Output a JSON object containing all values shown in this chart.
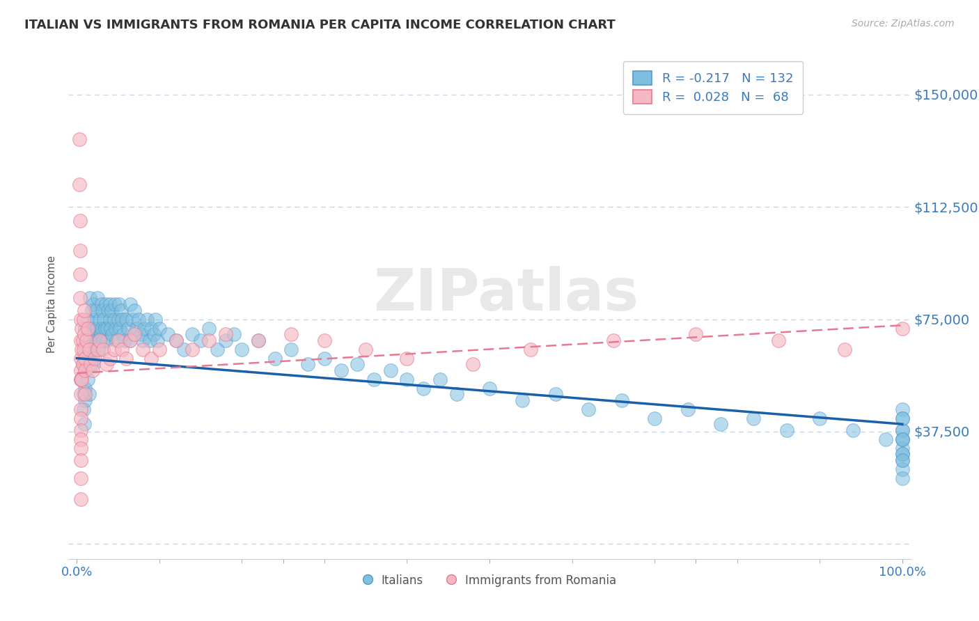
{
  "title": "ITALIAN VS IMMIGRANTS FROM ROMANIA PER CAPITA INCOME CORRELATION CHART",
  "source": "Source: ZipAtlas.com",
  "ylabel": "Per Capita Income",
  "xlim": [
    -0.01,
    1.01
  ],
  "ylim": [
    -5000,
    165000
  ],
  "yticks": [
    0,
    37500,
    75000,
    112500,
    150000
  ],
  "ytick_labels": [
    "",
    "$37,500",
    "$75,000",
    "$112,500",
    "$150,000"
  ],
  "xtick_positions": [
    0.0,
    0.25,
    0.5,
    0.75,
    1.0
  ],
  "xtick_labels": [
    "0.0%",
    "",
    "",
    "",
    "100.0%"
  ],
  "background_color": "#ffffff",
  "grid_color": "#c8d8e8",
  "blue_scatter_color": "#7fbfdf",
  "blue_edge_color": "#5599cc",
  "pink_scatter_color": "#f5b8c4",
  "pink_edge_color": "#e87890",
  "blue_line_color": "#1a5faa",
  "pink_line_color": "#e87890",
  "text_color": "#3a7abf",
  "label_italians": "Italians",
  "label_romania": "Immigrants from Romania",
  "watermark": "ZIPatlas",
  "blue_trend_x0": 0.0,
  "blue_trend_y0": 62000,
  "blue_trend_x1": 1.0,
  "blue_trend_y1": 40000,
  "pink_trend_x0": 0.0,
  "pink_trend_y0": 57000,
  "pink_trend_x1": 1.0,
  "pink_trend_y1": 73000,
  "legend_R1": "R = -0.217",
  "legend_N1": "N = 132",
  "legend_R2": "R =  0.028",
  "legend_N2": "N =  68",
  "italians_x": [
    0.005,
    0.007,
    0.008,
    0.008,
    0.009,
    0.01,
    0.01,
    0.01,
    0.01,
    0.01,
    0.012,
    0.012,
    0.013,
    0.013,
    0.015,
    0.015,
    0.015,
    0.016,
    0.016,
    0.017,
    0.018,
    0.018,
    0.019,
    0.019,
    0.02,
    0.02,
    0.02,
    0.022,
    0.022,
    0.023,
    0.024,
    0.025,
    0.025,
    0.026,
    0.027,
    0.028,
    0.029,
    0.03,
    0.03,
    0.031,
    0.032,
    0.033,
    0.034,
    0.035,
    0.036,
    0.037,
    0.038,
    0.04,
    0.04,
    0.041,
    0.042,
    0.043,
    0.045,
    0.046,
    0.047,
    0.048,
    0.05,
    0.051,
    0.052,
    0.054,
    0.055,
    0.056,
    0.058,
    0.06,
    0.062,
    0.064,
    0.065,
    0.067,
    0.07,
    0.072,
    0.075,
    0.078,
    0.08,
    0.082,
    0.085,
    0.088,
    0.09,
    0.093,
    0.095,
    0.098,
    0.1,
    0.11,
    0.12,
    0.13,
    0.14,
    0.15,
    0.16,
    0.17,
    0.18,
    0.19,
    0.2,
    0.22,
    0.24,
    0.26,
    0.28,
    0.3,
    0.32,
    0.34,
    0.36,
    0.38,
    0.4,
    0.42,
    0.44,
    0.46,
    0.5,
    0.54,
    0.58,
    0.62,
    0.66,
    0.7,
    0.74,
    0.78,
    0.82,
    0.86,
    0.9,
    0.94,
    0.98,
    1.0,
    1.0,
    1.0,
    1.0,
    1.0,
    1.0,
    1.0,
    1.0,
    1.0,
    1.0,
    1.0,
    1.0,
    1.0,
    1.0,
    1.0
  ],
  "italians_y": [
    55000,
    60000,
    50000,
    45000,
    40000,
    65000,
    58000,
    52000,
    48000,
    72000,
    68000,
    60000,
    55000,
    75000,
    70000,
    62000,
    50000,
    82000,
    68000,
    65000,
    78000,
    70000,
    62000,
    72000,
    80000,
    68000,
    60000,
    75000,
    65000,
    78000,
    70000,
    72000,
    82000,
    68000,
    65000,
    75000,
    70000,
    80000,
    72000,
    78000,
    68000,
    75000,
    72000,
    80000,
    68000,
    72000,
    78000,
    80000,
    75000,
    72000,
    78000,
    70000,
    75000,
    80000,
    72000,
    68000,
    75000,
    80000,
    72000,
    78000,
    75000,
    70000,
    68000,
    75000,
    72000,
    68000,
    80000,
    75000,
    78000,
    72000,
    75000,
    70000,
    68000,
    72000,
    75000,
    68000,
    72000,
    70000,
    75000,
    68000,
    72000,
    70000,
    68000,
    65000,
    70000,
    68000,
    72000,
    65000,
    68000,
    70000,
    65000,
    68000,
    62000,
    65000,
    60000,
    62000,
    58000,
    60000,
    55000,
    58000,
    55000,
    52000,
    55000,
    50000,
    52000,
    48000,
    50000,
    45000,
    48000,
    42000,
    45000,
    40000,
    42000,
    38000,
    42000,
    38000,
    35000,
    45000,
    42000,
    38000,
    35000,
    32000,
    38000,
    35000,
    30000,
    28000,
    35000,
    30000,
    25000,
    28000,
    22000,
    42000
  ],
  "romania_x": [
    0.003,
    0.003,
    0.004,
    0.004,
    0.004,
    0.004,
    0.005,
    0.005,
    0.005,
    0.005,
    0.005,
    0.005,
    0.005,
    0.005,
    0.005,
    0.005,
    0.005,
    0.005,
    0.005,
    0.005,
    0.006,
    0.006,
    0.006,
    0.007,
    0.007,
    0.008,
    0.008,
    0.009,
    0.009,
    0.01,
    0.01,
    0.01,
    0.012,
    0.013,
    0.015,
    0.017,
    0.019,
    0.022,
    0.025,
    0.028,
    0.032,
    0.036,
    0.04,
    0.045,
    0.05,
    0.055,
    0.06,
    0.065,
    0.07,
    0.08,
    0.09,
    0.1,
    0.12,
    0.14,
    0.16,
    0.18,
    0.22,
    0.26,
    0.3,
    0.35,
    0.4,
    0.48,
    0.55,
    0.65,
    0.75,
    0.85,
    0.93,
    1.0
  ],
  "romania_y": [
    135000,
    120000,
    108000,
    98000,
    90000,
    82000,
    75000,
    68000,
    62000,
    58000,
    55000,
    50000,
    45000,
    42000,
    38000,
    35000,
    32000,
    28000,
    22000,
    15000,
    72000,
    65000,
    55000,
    68000,
    60000,
    75000,
    65000,
    78000,
    70000,
    62000,
    58000,
    50000,
    68000,
    72000,
    65000,
    60000,
    58000,
    62000,
    65000,
    68000,
    65000,
    60000,
    62000,
    65000,
    68000,
    65000,
    62000,
    68000,
    70000,
    65000,
    62000,
    65000,
    68000,
    65000,
    68000,
    70000,
    68000,
    70000,
    68000,
    65000,
    62000,
    60000,
    65000,
    68000,
    70000,
    68000,
    65000,
    72000
  ]
}
